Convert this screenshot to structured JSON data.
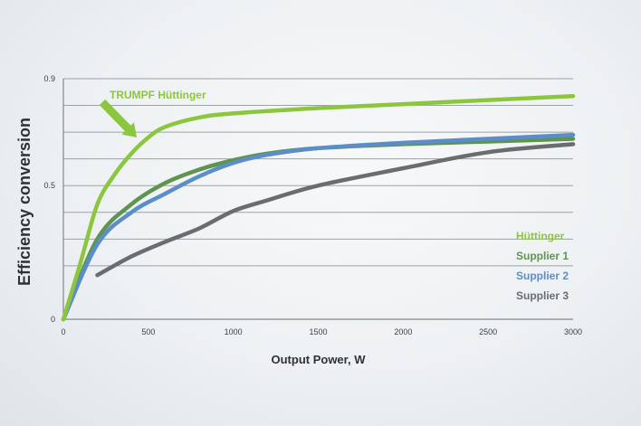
{
  "chart_data": {
    "type": "line",
    "title": "",
    "xlabel": "Output Power, W",
    "ylabel": "Efficiency conversion",
    "xlim": [
      0,
      3000
    ],
    "ylim": [
      0,
      0.9
    ],
    "x_ticks": [
      0,
      500,
      1000,
      1500,
      2000,
      2500,
      3000
    ],
    "y_ticks": [
      0,
      0.5,
      0.9
    ],
    "y_gridlines": [
      0.3,
      0.2,
      0.4,
      0.5,
      0.6,
      0.7,
      0.8,
      0.9
    ],
    "grid": true,
    "legend_position": "right",
    "annotation": {
      "text": "TRUMPF Hüttinger",
      "series": "Hüttinger"
    },
    "series": [
      {
        "name": "Hüttinger",
        "color": "#8cc63f",
        "points": [
          [
            0,
            0
          ],
          [
            100,
            0.21
          ],
          [
            200,
            0.43
          ],
          [
            300,
            0.54
          ],
          [
            400,
            0.62
          ],
          [
            500,
            0.68
          ],
          [
            600,
            0.72
          ],
          [
            800,
            0.755
          ],
          [
            1000,
            0.77
          ],
          [
            1500,
            0.79
          ],
          [
            2000,
            0.805
          ],
          [
            2500,
            0.82
          ],
          [
            3000,
            0.835
          ]
        ]
      },
      {
        "name": "Supplier 1",
        "color": "#5e9450",
        "points": [
          [
            0,
            0
          ],
          [
            200,
            0.3
          ],
          [
            400,
            0.43
          ],
          [
            600,
            0.51
          ],
          [
            800,
            0.56
          ],
          [
            1000,
            0.595
          ],
          [
            1200,
            0.62
          ],
          [
            1500,
            0.64
          ],
          [
            2000,
            0.655
          ],
          [
            2500,
            0.665
          ],
          [
            3000,
            0.675
          ]
        ]
      },
      {
        "name": "Supplier 2",
        "color": "#5b8ec8",
        "points": [
          [
            0,
            0
          ],
          [
            200,
            0.28
          ],
          [
            400,
            0.4
          ],
          [
            600,
            0.47
          ],
          [
            800,
            0.535
          ],
          [
            1000,
            0.585
          ],
          [
            1200,
            0.615
          ],
          [
            1500,
            0.64
          ],
          [
            2000,
            0.66
          ],
          [
            2500,
            0.675
          ],
          [
            3000,
            0.69
          ]
        ]
      },
      {
        "name": "Supplier 3",
        "color": "#6a6d70",
        "points": [
          [
            200,
            0.165
          ],
          [
            400,
            0.235
          ],
          [
            600,
            0.29
          ],
          [
            800,
            0.34
          ],
          [
            1000,
            0.405
          ],
          [
            1200,
            0.445
          ],
          [
            1500,
            0.5
          ],
          [
            2000,
            0.565
          ],
          [
            2500,
            0.625
          ],
          [
            3000,
            0.655
          ]
        ]
      }
    ]
  }
}
